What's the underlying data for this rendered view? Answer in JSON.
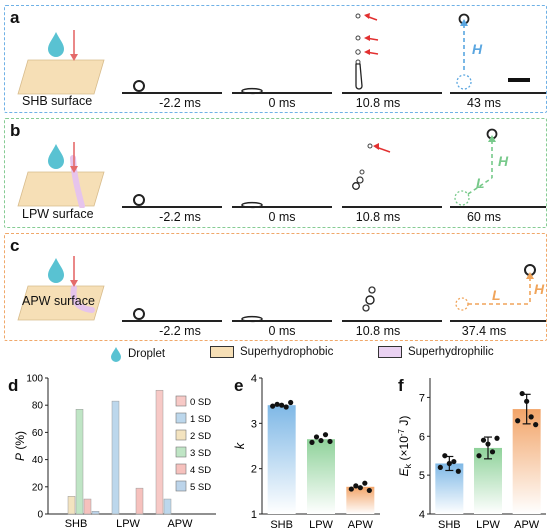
{
  "rows": [
    {
      "letter": "a",
      "surface": "SHB surface",
      "times": [
        "-2.2 ms",
        "0 ms",
        "10.8 ms",
        "43 ms"
      ],
      "color": "#5aa6e0",
      "annot": "H"
    },
    {
      "letter": "b",
      "surface": "LPW surface",
      "times": [
        "-2.2 ms",
        "0 ms",
        "10.8 ms",
        "60 ms"
      ],
      "color": "#77c98a",
      "annot_h": "H",
      "annot_l": "L"
    },
    {
      "letter": "c",
      "surface": "APW surface",
      "times": [
        "-2.2 ms",
        "0 ms",
        "10.8 ms",
        "37.4 ms"
      ],
      "color": "#f0a45a",
      "annot_h": "H",
      "annot_l": "L"
    }
  ],
  "legend": {
    "droplet": "Droplet",
    "superhydrophobic": "Superhydrophobic",
    "superhydrophilic": "Superhydrophilic"
  },
  "panel_d": {
    "letter": "d",
    "ylabel_italic": "P",
    "ylabel_rest": " (%)",
    "yticks": [
      "0",
      "20",
      "40",
      "60",
      "80",
      "100"
    ],
    "categories": [
      "SHB",
      "LPW",
      "APW"
    ],
    "series_names": [
      "0 SD",
      "1 SD",
      "2 SD",
      "3 SD",
      "4 SD",
      "5 SD"
    ],
    "series_colors": [
      "#f7c9c6",
      "#bcd7ec",
      "#f3e3bf",
      "#bfe5c5",
      "#f6c1bd",
      "#bcd4ea"
    ],
    "values": {
      "SHB": [
        0,
        0,
        13,
        77,
        11,
        2
      ],
      "LPW": [
        0,
        83,
        0,
        0,
        19,
        0
      ],
      "APW": [
        91,
        11,
        0,
        0,
        0,
        0
      ]
    },
    "ylim": [
      0,
      100
    ]
  },
  "panel_e": {
    "letter": "e",
    "ylabel": "k",
    "yticks": [
      "1",
      "2",
      "3",
      "4"
    ],
    "categories": [
      "SHB",
      "LPW",
      "APW"
    ],
    "means": [
      3.4,
      2.65,
      1.6
    ],
    "colors": [
      "#7fb8e6",
      "#8fd29a",
      "#f2a468"
    ],
    "points": [
      [
        3.38,
        3.42,
        3.4,
        3.36,
        3.46
      ],
      [
        2.58,
        2.7,
        2.62,
        2.75,
        2.6
      ],
      [
        1.55,
        1.62,
        1.58,
        1.68,
        1.52
      ]
    ],
    "ylim": [
      1,
      4
    ]
  },
  "panel_f": {
    "letter": "f",
    "ylabel_main": "E",
    "ylabel_sub": "k",
    "ylabel_rest": " (×10",
    "ylabel_sup": "-7",
    "ylabel_unit": " J)",
    "yticks": [
      "4",
      "5",
      "6",
      "7"
    ],
    "categories": [
      "SHB",
      "LPW",
      "APW"
    ],
    "means": [
      5.3,
      5.7,
      6.7
    ],
    "errors": [
      0.18,
      0.28,
      0.38
    ],
    "colors": [
      "#7fb8e6",
      "#8fd29a",
      "#f2a468"
    ],
    "points": [
      [
        5.2,
        5.5,
        5.3,
        5.35,
        5.1
      ],
      [
        5.5,
        5.9,
        5.8,
        5.6,
        5.95
      ],
      [
        6.4,
        7.1,
        6.9,
        6.5,
        6.3
      ]
    ],
    "ylim": [
      4,
      7.5
    ]
  }
}
